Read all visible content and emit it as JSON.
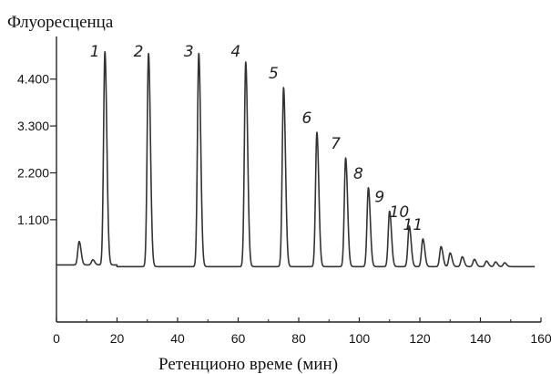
{
  "chart_data": {
    "type": "line",
    "title": "",
    "ylabel": "Флуоресценца",
    "xlabel": "Ретенционо време (мин)",
    "xlim": [
      0,
      160
    ],
    "ylim": [
      -1300,
      5400
    ],
    "x_ticks": [
      0,
      20,
      40,
      60,
      80,
      100,
      120,
      140,
      160
    ],
    "x_tick_labels": [
      "0",
      "20",
      "40",
      "60",
      "80",
      "100",
      "120",
      "140",
      "160"
    ],
    "y_ticks": [
      1100,
      2200,
      3300,
      4400
    ],
    "y_tick_labels": [
      "1.100",
      "2.200",
      "3.300",
      "4.400"
    ],
    "baseline": 0,
    "grid": false,
    "legend": "none",
    "line_color": "#333333",
    "peaks": [
      {
        "label": "1",
        "x": 16,
        "y": 5000
      },
      {
        "label": "2",
        "x": 30.4,
        "y": 5000
      },
      {
        "label": "3",
        "x": 47,
        "y": 5000
      },
      {
        "label": "4",
        "x": 62.5,
        "y": 4800
      },
      {
        "label": "5",
        "x": 75,
        "y": 4200
      },
      {
        "label": "6",
        "x": 86,
        "y": 3150
      },
      {
        "label": "7",
        "x": 95.5,
        "y": 2550
      },
      {
        "label": "8",
        "x": 103,
        "y": 1850
      },
      {
        "label": "9",
        "x": 110,
        "y": 1300
      },
      {
        "label": "10",
        "x": 116.5,
        "y": 950
      },
      {
        "label": "11",
        "x": 121,
        "y": 650
      }
    ],
    "minor_peaks": [
      {
        "x": 7.5,
        "y": 550
      },
      {
        "x": 12,
        "y": 120
      },
      {
        "x": 127,
        "y": 470
      },
      {
        "x": 130,
        "y": 320
      },
      {
        "x": 134,
        "y": 230
      },
      {
        "x": 138,
        "y": 170
      },
      {
        "x": 142,
        "y": 130
      },
      {
        "x": 145,
        "y": 110
      },
      {
        "x": 148,
        "y": 90
      }
    ]
  }
}
